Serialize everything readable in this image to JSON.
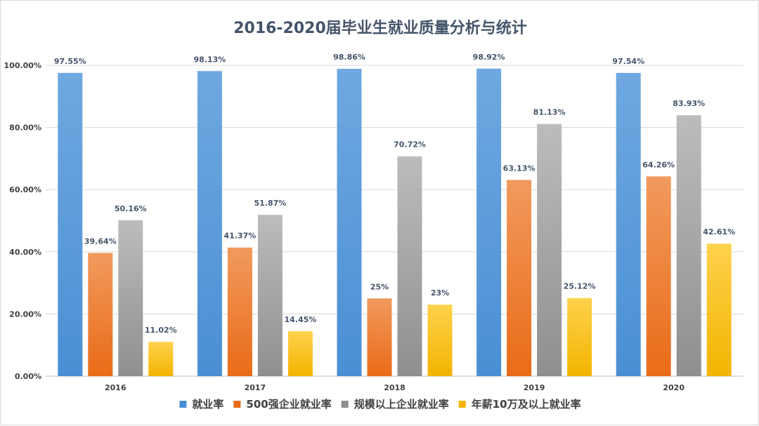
{
  "chart_data": {
    "type": "bar",
    "title": "2016-2020届毕业生就业质量分析与统计",
    "categories": [
      "2016",
      "2017",
      "2018",
      "2019",
      "2020"
    ],
    "ylim": [
      0,
      100
    ],
    "yticks": [
      0,
      20,
      40,
      60,
      80,
      100
    ],
    "ytick_labels": [
      "0.00%",
      "20.00%",
      "40.00%",
      "60.00%",
      "80.00%",
      "100.00%"
    ],
    "grid": true,
    "legend_position": "bottom",
    "series": [
      {
        "name": "就业率",
        "color": "#4a8fd4",
        "color_light": "#6fa8e0",
        "values": [
          97.55,
          98.13,
          98.86,
          98.92,
          97.54
        ],
        "labels": [
          "97.55%",
          "98.13%",
          "98.86%",
          "98.92%",
          "97.54%"
        ]
      },
      {
        "name": "500强企业就业率",
        "color": "#e96b17",
        "color_light": "#f19a5e",
        "values": [
          39.64,
          41.37,
          25,
          63.13,
          64.26
        ],
        "labels": [
          "39.64%",
          "41.37%",
          "25%",
          "63.13%",
          "64.26%"
        ]
      },
      {
        "name": "规模以上企业就业率",
        "color": "#8f8f8f",
        "color_light": "#bcbcbc",
        "values": [
          50.16,
          51.87,
          70.72,
          81.13,
          83.93
        ],
        "labels": [
          "50.16%",
          "51.87%",
          "70.72%",
          "81.13%",
          "83.93%"
        ]
      },
      {
        "name": "年薪10万及以上就业率",
        "color": "#f2b400",
        "color_light": "#ffd24d",
        "values": [
          11.02,
          14.45,
          23,
          25.12,
          42.61
        ],
        "labels": [
          "11.02%",
          "14.45%",
          "23%",
          "25.12%",
          "42.61%"
        ]
      }
    ]
  }
}
